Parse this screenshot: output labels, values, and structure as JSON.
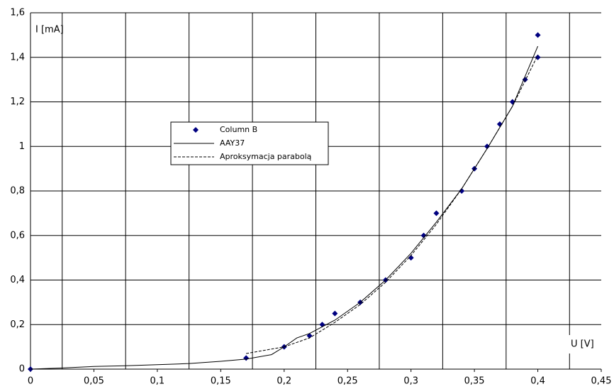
{
  "chart_data": {
    "type": "scatter",
    "x_label": "U [V]",
    "y_label": "I [mA]",
    "xlim": [
      0,
      0.45
    ],
    "ylim": [
      0,
      1.6
    ],
    "xticks": [
      0,
      {
        "value": 0.05,
        "label": "0,05"
      },
      {
        "value": 0.1,
        "label": "0,1"
      },
      {
        "value": 0.15,
        "label": "0,15"
      },
      {
        "value": 0.2,
        "label": "0,2"
      },
      {
        "value": 0.25,
        "label": "0,25"
      },
      {
        "value": 0.3,
        "label": "0,3"
      },
      {
        "value": 0.35,
        "label": "0,35"
      },
      {
        "value": 0.4,
        "label": "0,4"
      },
      {
        "value": 0.45,
        "label": "0,45"
      }
    ],
    "yticks": [
      0,
      {
        "value": 0.2,
        "label": "0,2"
      },
      {
        "value": 0.4,
        "label": "0,4"
      },
      {
        "value": 0.6,
        "label": "0,6"
      },
      {
        "value": 0.8,
        "label": "0,8"
      },
      1,
      {
        "value": 1.2,
        "label": "1,2"
      },
      {
        "value": 1.4,
        "label": "1,4"
      },
      {
        "value": 1.6,
        "label": "1,6"
      }
    ],
    "xgrid": [
      0.025,
      0.075,
      0.125,
      0.175,
      0.225,
      0.275,
      0.325,
      0.375,
      0.425
    ],
    "grid": true,
    "series": [
      {
        "name": "Column B",
        "color": "#000080",
        "mode": "markers",
        "x": [
          0,
          0.17,
          0.2,
          0.22,
          0.23,
          0.24,
          0.26,
          0.28,
          0.3,
          0.31,
          0.32,
          0.34,
          0.35,
          0.36,
          0.37,
          0.38,
          0.39,
          0.4,
          0.4
        ],
        "values": [
          0,
          0.05,
          0.1,
          0.15,
          0.2,
          0.25,
          0.3,
          0.4,
          0.5,
          0.6,
          0.7,
          0.8,
          0.9,
          1.0,
          1.1,
          1.2,
          1.3,
          1.4,
          1.5
        ]
      },
      {
        "name": "AAY37",
        "color": "#000000",
        "mode": "solid",
        "x": [
          0,
          0.025,
          0.05,
          0.075,
          0.1,
          0.125,
          0.15,
          0.17,
          0.19,
          0.2,
          0.21,
          0.22,
          0.24,
          0.26,
          0.28,
          0.3,
          0.32,
          0.34,
          0.36,
          0.38,
          0.4
        ],
        "values": [
          0,
          0.005,
          0.012,
          0.015,
          0.02,
          0.025,
          0.035,
          0.045,
          0.065,
          0.1,
          0.14,
          0.16,
          0.22,
          0.3,
          0.4,
          0.52,
          0.66,
          0.81,
          0.99,
          1.18,
          1.45
        ]
      },
      {
        "name": "Aproksymacja parabolą",
        "color": "#000000",
        "mode": "dashed",
        "x": [
          0.17,
          0.19,
          0.2,
          0.22,
          0.24,
          0.26,
          0.28,
          0.3,
          0.32,
          0.34,
          0.36,
          0.38,
          0.4
        ],
        "values": [
          0.07,
          0.09,
          0.1,
          0.14,
          0.21,
          0.29,
          0.39,
          0.51,
          0.65,
          0.81,
          0.99,
          1.18,
          1.41
        ]
      }
    ]
  }
}
